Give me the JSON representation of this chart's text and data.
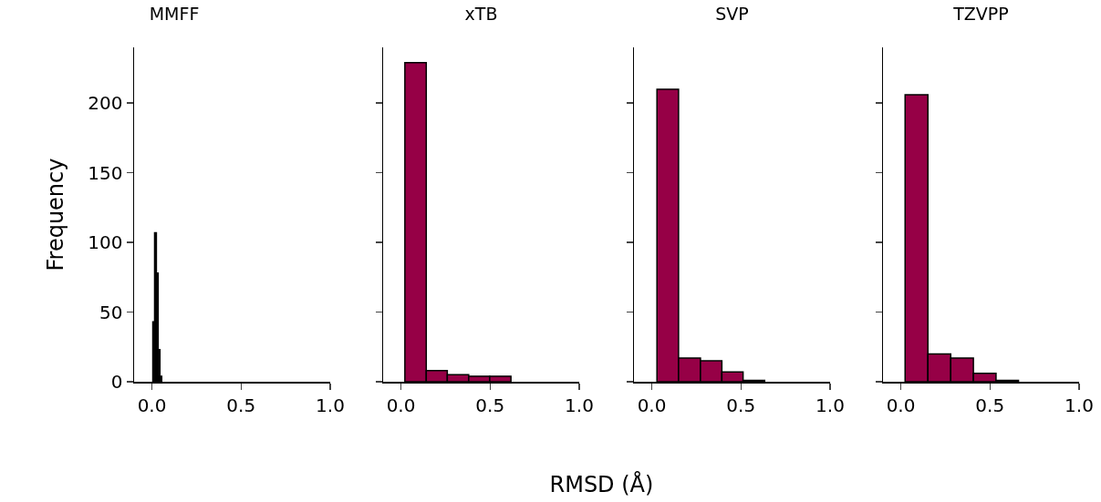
{
  "chart_data": [
    {
      "type": "histogram",
      "title": "MMFF",
      "ylabel": "Frequency",
      "bins": [
        0.005,
        0.015,
        0.025,
        0.035,
        0.045,
        0.055
      ],
      "values": [
        43,
        107,
        78,
        23,
        4
      ],
      "color": "#000000",
      "xlim": [
        -0.1,
        1.0
      ],
      "xticks": [
        {
          "value": 0,
          "label": "0.0"
        },
        {
          "value": 0.5,
          "label": "0.5"
        },
        {
          "value": 1,
          "label": "1.0"
        }
      ],
      "ylim": [
        0,
        240
      ],
      "yticks": [
        0,
        50,
        100,
        150,
        200
      ]
    },
    {
      "type": "histogram",
      "title": "xTB",
      "xlabel": "RMSD (Å)",
      "bins": [
        0.022,
        0.142,
        0.26,
        0.38,
        0.498,
        0.617
      ],
      "values": [
        229,
        8,
        5,
        4,
        4
      ],
      "color": "#960046",
      "xlim": [
        -0.1,
        1.0
      ],
      "xticks": [
        {
          "value": 0,
          "label": "0.0"
        },
        {
          "value": 0.5,
          "label": "0.5"
        },
        {
          "value": 1,
          "label": "1.0"
        }
      ],
      "ylim": [
        0,
        240
      ],
      "yticks": [
        0,
        50,
        100,
        150,
        200
      ],
      "tick_labels": "x"
    },
    {
      "type": "histogram",
      "title": "SVP",
      "bins": [
        0.029,
        0.15,
        0.273,
        0.393,
        0.512,
        0.633
      ],
      "values": [
        210,
        17,
        15,
        7,
        1
      ],
      "color": "#960046",
      "xlim": [
        -0.1,
        1.0
      ],
      "xticks": [
        {
          "value": 0,
          "label": "0.0"
        },
        {
          "value": 0.5,
          "label": "0.5"
        },
        {
          "value": 1,
          "label": "1.0"
        }
      ],
      "ylim": [
        0,
        240
      ],
      "yticks": [
        0,
        50,
        100,
        150,
        200
      ],
      "tick_labels": "x"
    },
    {
      "type": "histogram",
      "title": "TZVPP",
      "bins": [
        0.024,
        0.152,
        0.28,
        0.407,
        0.534,
        0.66
      ],
      "values": [
        206,
        20,
        17,
        6,
        1
      ],
      "color": "#960046",
      "xlim": [
        -0.1,
        1.0
      ],
      "xticks": [
        {
          "value": 0,
          "label": "0.0"
        },
        {
          "value": 0.5,
          "label": "0.5"
        },
        {
          "value": 1,
          "label": "1.0"
        }
      ],
      "ylim": [
        0,
        240
      ],
      "yticks": [
        0,
        50,
        100,
        150,
        200
      ],
      "tick_labels": "x"
    }
  ]
}
